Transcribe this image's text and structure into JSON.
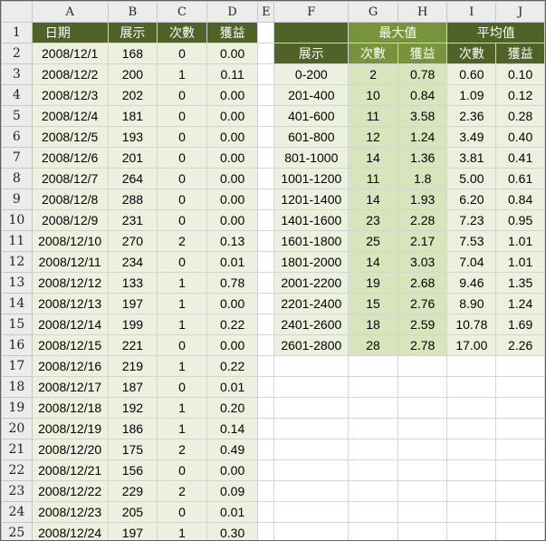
{
  "columns": [
    "A",
    "B",
    "C",
    "D",
    "E",
    "F",
    "G",
    "H",
    "I",
    "J"
  ],
  "left_table": {
    "headers": [
      "日期",
      "展示",
      "次數",
      "獲益"
    ],
    "rows": [
      [
        "2008/12/1",
        "168",
        "0",
        "0.00"
      ],
      [
        "2008/12/2",
        "200",
        "1",
        "0.11"
      ],
      [
        "2008/12/3",
        "202",
        "0",
        "0.00"
      ],
      [
        "2008/12/4",
        "181",
        "0",
        "0.00"
      ],
      [
        "2008/12/5",
        "193",
        "0",
        "0.00"
      ],
      [
        "2008/12/6",
        "201",
        "0",
        "0.00"
      ],
      [
        "2008/12/7",
        "264",
        "0",
        "0.00"
      ],
      [
        "2008/12/8",
        "288",
        "0",
        "0.00"
      ],
      [
        "2008/12/9",
        "231",
        "0",
        "0.00"
      ],
      [
        "2008/12/10",
        "270",
        "2",
        "0.13"
      ],
      [
        "2008/12/11",
        "234",
        "0",
        "0.01"
      ],
      [
        "2008/12/12",
        "133",
        "1",
        "0.78"
      ],
      [
        "2008/12/13",
        "197",
        "1",
        "0.00"
      ],
      [
        "2008/12/14",
        "199",
        "1",
        "0.22"
      ],
      [
        "2008/12/15",
        "221",
        "0",
        "0.00"
      ],
      [
        "2008/12/16",
        "219",
        "1",
        "0.22"
      ],
      [
        "2008/12/17",
        "187",
        "0",
        "0.01"
      ],
      [
        "2008/12/18",
        "192",
        "1",
        "0.20"
      ],
      [
        "2008/12/19",
        "186",
        "1",
        "0.14"
      ],
      [
        "2008/12/20",
        "175",
        "2",
        "0.49"
      ],
      [
        "2008/12/21",
        "156",
        "0",
        "0.00"
      ],
      [
        "2008/12/22",
        "229",
        "2",
        "0.09"
      ],
      [
        "2008/12/23",
        "205",
        "0",
        "0.01"
      ],
      [
        "2008/12/24",
        "197",
        "1",
        "0.30"
      ]
    ]
  },
  "right_table": {
    "group_max": "最大值",
    "group_avg": "平均值",
    "subheaders": [
      "展示",
      "次數",
      "獲益",
      "次數",
      "獲益"
    ],
    "rows": [
      [
        "0-200",
        "2",
        "0.78",
        "0.60",
        "0.10"
      ],
      [
        "201-400",
        "10",
        "0.84",
        "1.09",
        "0.12"
      ],
      [
        "401-600",
        "11",
        "3.58",
        "2.36",
        "0.28"
      ],
      [
        "601-800",
        "12",
        "1.24",
        "3.49",
        "0.40"
      ],
      [
        "801-1000",
        "14",
        "1.36",
        "3.81",
        "0.41"
      ],
      [
        "1001-1200",
        "11",
        "1.8",
        "5.00",
        "0.61"
      ],
      [
        "1201-1400",
        "14",
        "1.93",
        "6.20",
        "0.84"
      ],
      [
        "1401-1600",
        "23",
        "2.28",
        "7.23",
        "0.95"
      ],
      [
        "1601-1800",
        "25",
        "2.17",
        "7.53",
        "1.01"
      ],
      [
        "1801-2000",
        "14",
        "3.03",
        "7.04",
        "1.01"
      ],
      [
        "2001-2200",
        "19",
        "2.68",
        "9.46",
        "1.35"
      ],
      [
        "2201-2400",
        "15",
        "2.76",
        "8.90",
        "1.24"
      ],
      [
        "2401-2600",
        "18",
        "2.59",
        "10.78",
        "1.69"
      ],
      [
        "2601-2800",
        "28",
        "2.78",
        "17.00",
        "2.26"
      ]
    ]
  }
}
